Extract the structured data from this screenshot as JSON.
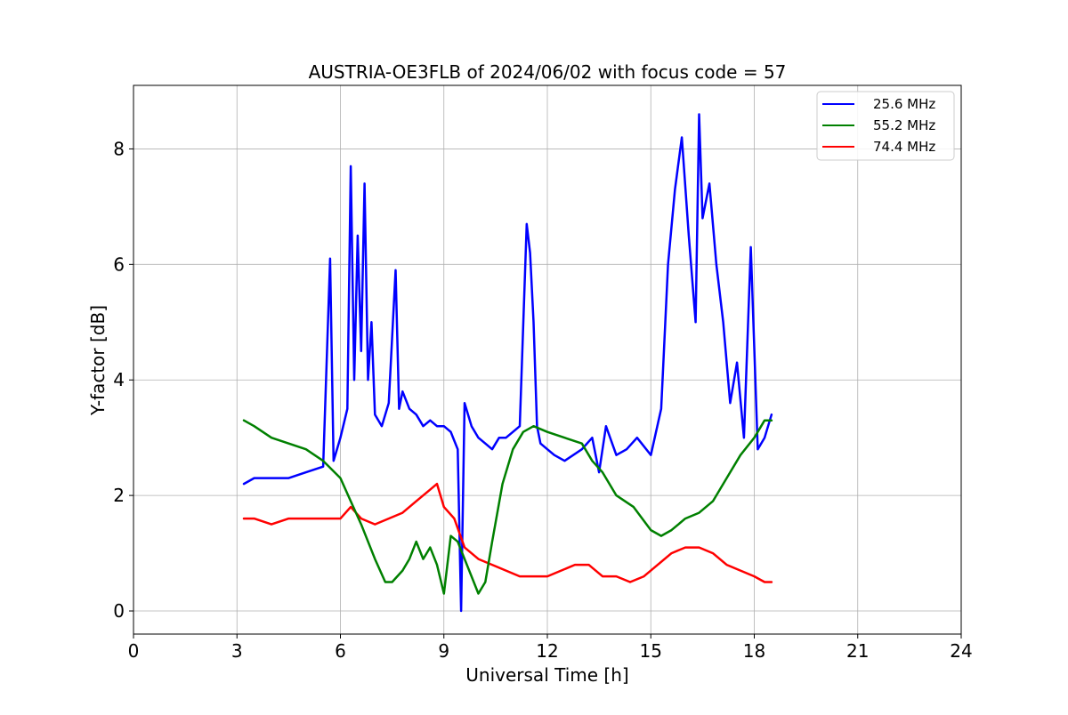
{
  "chart_data": {
    "type": "line",
    "title": "AUSTRIA-OE3FLB of 2024/06/02 with focus code = 57",
    "xlabel": "Universal Time [h]",
    "ylabel": "Y-factor [dB]",
    "xlim": [
      0,
      24
    ],
    "ylim": [
      -0.4,
      9.1
    ],
    "xticks": [
      0,
      3,
      6,
      9,
      12,
      15,
      18,
      21,
      24
    ],
    "yticks": [
      0,
      2,
      4,
      6,
      8
    ],
    "grid": true,
    "legend_position": "top-right",
    "series": [
      {
        "name": "25.6 MHz",
        "color": "#0000ff",
        "x": [
          3.2,
          3.5,
          4.0,
          4.5,
          5.0,
          5.5,
          5.7,
          5.8,
          6.0,
          6.2,
          6.3,
          6.4,
          6.5,
          6.6,
          6.7,
          6.8,
          6.9,
          7.0,
          7.2,
          7.4,
          7.6,
          7.7,
          7.8,
          8.0,
          8.2,
          8.4,
          8.6,
          8.8,
          9.0,
          9.2,
          9.4,
          9.5,
          9.6,
          9.8,
          10.0,
          10.2,
          10.4,
          10.6,
          10.8,
          11.0,
          11.2,
          11.4,
          11.5,
          11.6,
          11.7,
          11.8,
          12.0,
          12.2,
          12.5,
          13.0,
          13.3,
          13.5,
          13.7,
          14.0,
          14.3,
          14.6,
          15.0,
          15.3,
          15.5,
          15.7,
          15.9,
          16.1,
          16.3,
          16.4,
          16.5,
          16.7,
          16.9,
          17.1,
          17.3,
          17.5,
          17.7,
          17.9,
          18.1,
          18.3,
          18.5
        ],
        "values": [
          2.2,
          2.3,
          2.3,
          2.3,
          2.4,
          2.5,
          6.1,
          2.6,
          3.0,
          3.5,
          7.7,
          4.0,
          6.5,
          4.5,
          7.4,
          4.0,
          5.0,
          3.4,
          3.2,
          3.6,
          5.9,
          3.5,
          3.8,
          3.5,
          3.4,
          3.2,
          3.3,
          3.2,
          3.2,
          3.1,
          2.8,
          0.0,
          3.6,
          3.2,
          3.0,
          2.9,
          2.8,
          3.0,
          3.0,
          3.1,
          3.2,
          6.7,
          6.2,
          5.0,
          3.2,
          2.9,
          2.8,
          2.7,
          2.6,
          2.8,
          3.0,
          2.4,
          3.2,
          2.7,
          2.8,
          3.0,
          2.7,
          3.5,
          6.0,
          7.3,
          8.2,
          6.5,
          5.0,
          8.6,
          6.8,
          7.4,
          6.0,
          5.0,
          3.6,
          4.3,
          3.0,
          6.3,
          2.8,
          3.0,
          3.4
        ]
      },
      {
        "name": "55.2 MHz",
        "color": "#008000",
        "x": [
          3.2,
          3.5,
          4.0,
          4.5,
          5.0,
          5.5,
          6.0,
          6.3,
          6.6,
          7.0,
          7.3,
          7.5,
          7.8,
          8.0,
          8.2,
          8.4,
          8.6,
          8.8,
          9.0,
          9.2,
          9.4,
          9.6,
          9.8,
          10.0,
          10.2,
          10.4,
          10.7,
          11.0,
          11.3,
          11.6,
          12.0,
          12.5,
          13.0,
          13.3,
          13.6,
          14.0,
          14.5,
          15.0,
          15.3,
          15.6,
          16.0,
          16.4,
          16.8,
          17.2,
          17.6,
          18.0,
          18.3,
          18.5
        ],
        "values": [
          3.3,
          3.2,
          3.0,
          2.9,
          2.8,
          2.6,
          2.3,
          1.9,
          1.5,
          0.9,
          0.5,
          0.5,
          0.7,
          0.9,
          1.2,
          0.9,
          1.1,
          0.8,
          0.3,
          1.3,
          1.2,
          0.9,
          0.6,
          0.3,
          0.5,
          1.2,
          2.2,
          2.8,
          3.1,
          3.2,
          3.1,
          3.0,
          2.9,
          2.6,
          2.4,
          2.0,
          1.8,
          1.4,
          1.3,
          1.4,
          1.6,
          1.7,
          1.9,
          2.3,
          2.7,
          3.0,
          3.3,
          3.3
        ]
      },
      {
        "name": "74.4 MHz",
        "color": "#ff0000",
        "x": [
          3.2,
          3.5,
          4.0,
          4.5,
          5.0,
          5.5,
          6.0,
          6.3,
          6.6,
          7.0,
          7.4,
          7.8,
          8.2,
          8.6,
          8.8,
          9.0,
          9.3,
          9.6,
          10.0,
          10.4,
          10.8,
          11.2,
          11.6,
          12.0,
          12.4,
          12.8,
          13.2,
          13.6,
          14.0,
          14.4,
          14.8,
          15.2,
          15.6,
          16.0,
          16.4,
          16.8,
          17.2,
          17.6,
          18.0,
          18.3,
          18.5
        ],
        "values": [
          1.6,
          1.6,
          1.5,
          1.6,
          1.6,
          1.6,
          1.6,
          1.8,
          1.6,
          1.5,
          1.6,
          1.7,
          1.9,
          2.1,
          2.2,
          1.8,
          1.6,
          1.1,
          0.9,
          0.8,
          0.7,
          0.6,
          0.6,
          0.6,
          0.7,
          0.8,
          0.8,
          0.6,
          0.6,
          0.5,
          0.6,
          0.8,
          1.0,
          1.1,
          1.1,
          1.0,
          0.8,
          0.7,
          0.6,
          0.5,
          0.5
        ]
      }
    ]
  }
}
